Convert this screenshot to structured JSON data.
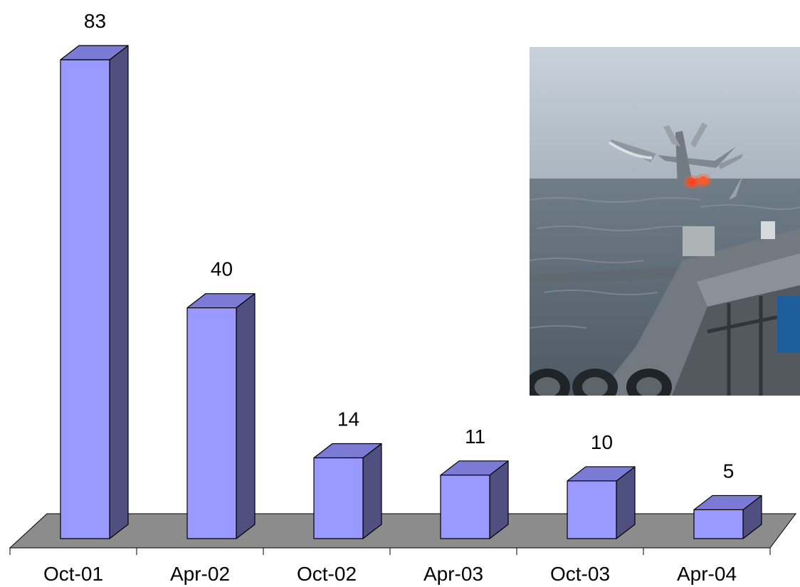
{
  "chart_data": {
    "type": "bar",
    "style": "3d-column",
    "categories": [
      "Oct-01",
      "Apr-02",
      "Oct-02",
      "Apr-03",
      "Oct-03",
      "Apr-04"
    ],
    "values": [
      83,
      40,
      14,
      11,
      10,
      5
    ],
    "title": "",
    "xlabel": "",
    "ylabel": "",
    "ylim": [
      0,
      83
    ],
    "grid": false,
    "data_labels": true,
    "colors": {
      "bar_front": "#9999ff",
      "bar_top": "#7b7bd6",
      "bar_side": "#505080",
      "floor": "#8c8c8c",
      "outline": "#000000"
    }
  },
  "inset_photo": {
    "subject": "fighter jet launching from aircraft carrier deck over the sea"
  }
}
